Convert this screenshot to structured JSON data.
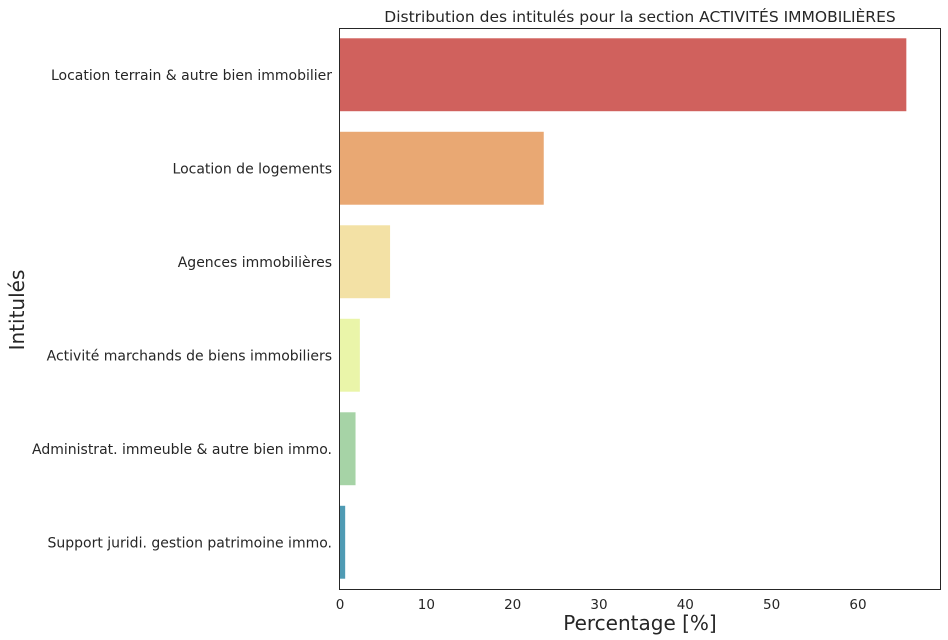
{
  "chart_data": {
    "type": "bar",
    "orientation": "horizontal",
    "title": "Distribution des intitulés pour la section ACTIVITÉS IMMOBILIÈRES",
    "xlabel": "Percentage [%]",
    "ylabel": "Intitulés",
    "xlim": [
      0,
      69.5
    ],
    "xticks": [
      0,
      10,
      20,
      30,
      40,
      50,
      60
    ],
    "grid": false,
    "categories": [
      "Location terrain & autre bien immobilier",
      "Location de logements",
      "Agences immobilières",
      "Activité marchands de biens immobiliers",
      "Administrat. immeuble & autre bien immo.",
      "Support juridi. gestion patrimoine immo."
    ],
    "values": [
      65.6,
      23.6,
      5.8,
      2.3,
      1.8,
      0.6
    ],
    "colors": [
      "#d0615d",
      "#e9a873",
      "#f3e1a5",
      "#eaf5a9",
      "#a6d3a6",
      "#4f9bb4"
    ]
  }
}
